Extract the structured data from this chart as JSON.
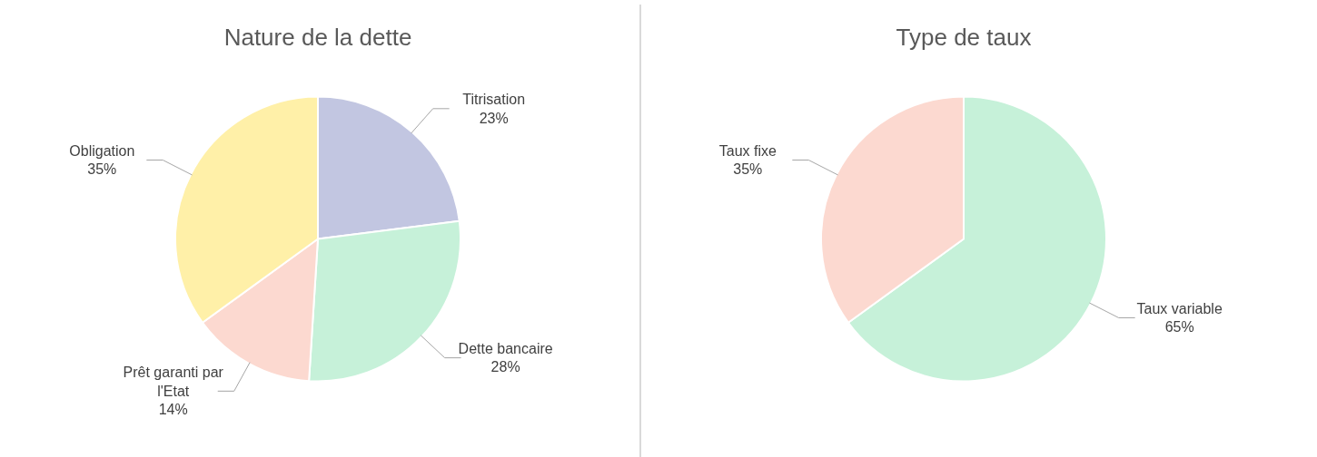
{
  "chart_data": [
    {
      "type": "pie",
      "title": "Nature de la dette",
      "categories": [
        "Titrisation",
        "Dette bancaire",
        "Prêt garanti par l'Etat",
        "Obligation"
      ],
      "values": [
        23,
        28,
        14,
        35
      ],
      "value_labels": [
        "23%",
        "28%",
        "14%",
        "35%"
      ],
      "colors": [
        "#c2c6e1",
        "#c6f1d9",
        "#fcd9d0",
        "#fff0a8"
      ]
    },
    {
      "type": "pie",
      "title": "Type de taux",
      "categories": [
        "Taux variable",
        "Taux fixe"
      ],
      "values": [
        65,
        35
      ],
      "value_labels": [
        "65%",
        "35%"
      ],
      "colors": [
        "#c6f1d9",
        "#fcd9d0"
      ]
    }
  ]
}
